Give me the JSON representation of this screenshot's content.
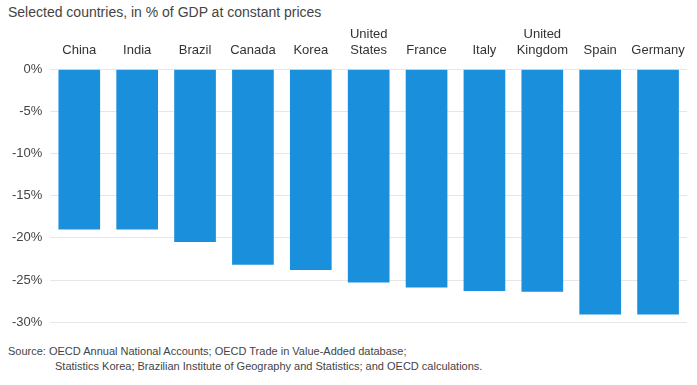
{
  "chart_data": {
    "type": "bar",
    "subtitle": "Selected countries, in % of GDP at constant prices",
    "categories": [
      "China",
      "India",
      "Brazil",
      "Canada",
      "Korea",
      "United States",
      "France",
      "Italy",
      "United Kingdom",
      "Spain",
      "Germany"
    ],
    "values": [
      -19,
      -19,
      -20.5,
      -23.2,
      -23.8,
      -25.3,
      -25.9,
      -26.3,
      -26.4,
      -29.1,
      -29.1
    ],
    "color": "#1a8fdb",
    "ylim": [
      -30,
      0
    ],
    "yticks": [
      {
        "value": 0,
        "label": "0%"
      },
      {
        "value": -5,
        "label": "-5%"
      },
      {
        "value": -10,
        "label": "-10%"
      },
      {
        "value": -15,
        "label": "-15%"
      },
      {
        "value": -20,
        "label": "-20%"
      },
      {
        "value": -25,
        "label": "-25%"
      },
      {
        "value": -30,
        "label": "-30%"
      }
    ],
    "grid": true,
    "source": [
      "Source:  OECD Annual National Accounts; OECD Trade in Value-Added database;",
      "Statistics Korea; Brazilian Institute of Geography and Statistics; and OECD calculations."
    ]
  }
}
